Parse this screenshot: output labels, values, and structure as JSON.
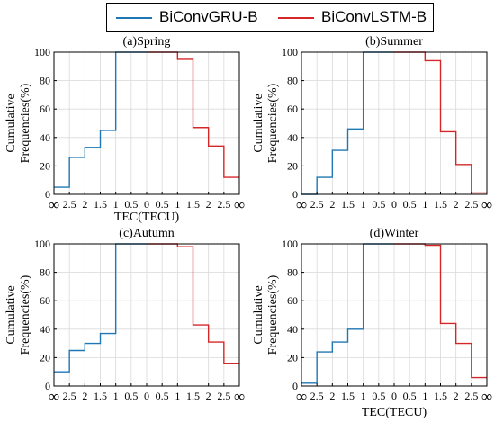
{
  "legend": {
    "gru": {
      "label": "BiConvGRU-B",
      "color": "#1f77b4"
    },
    "lstm": {
      "label": "BiConvLSTM-B",
      "color": "#d62728"
    }
  },
  "chart_data": [
    {
      "type": "line",
      "title": "(a)Spring",
      "xlabel": "TEC(TECU)",
      "ylabel": "Cumulative Frequencies(%)",
      "x_tick_labels": [
        "∞",
        "2.5",
        "2",
        "1.5",
        "1",
        "0.5",
        "0",
        "0.5",
        "1",
        "1.5",
        "2",
        "2.5",
        "∞"
      ],
      "ylim": [
        0,
        100
      ],
      "y_ticks": [
        0,
        20,
        40,
        60,
        80,
        100
      ],
      "grid": true,
      "series": [
        {
          "name": "BiConvGRU-B",
          "steps": [
            5,
            26,
            33,
            45,
            100,
            100
          ]
        },
        {
          "name": "BiConvLSTM-B",
          "steps": [
            100,
            100,
            95,
            47,
            34,
            12
          ]
        }
      ]
    },
    {
      "type": "line",
      "title": "(b)Summer",
      "xlabel": "",
      "ylabel": "Cumulative Frequencies(%)",
      "x_tick_labels": [
        "∞",
        "2.5",
        "2",
        "1.5",
        "1",
        "0.5",
        "0",
        "0.5",
        "1",
        "1.5",
        "2",
        "2.5",
        "∞"
      ],
      "ylim": [
        0,
        100
      ],
      "y_ticks": [
        0,
        20,
        40,
        60,
        80,
        100
      ],
      "grid": true,
      "series": [
        {
          "name": "BiConvGRU-B",
          "steps": [
            0,
            12,
            31,
            46,
            100,
            100
          ]
        },
        {
          "name": "BiConvLSTM-B",
          "steps": [
            100,
            100,
            94,
            44,
            21,
            1
          ]
        }
      ]
    },
    {
      "type": "line",
      "title": "(c)Autumn",
      "xlabel": "",
      "ylabel": "Cumulative Frequencies(%)",
      "x_tick_labels": [
        "∞",
        "2.5",
        "2",
        "1.5",
        "1",
        "0.5",
        "0",
        "0.5",
        "1",
        "1.5",
        "2",
        "2.5",
        "∞"
      ],
      "ylim": [
        0,
        100
      ],
      "y_ticks": [
        0,
        20,
        40,
        60,
        80,
        100
      ],
      "grid": true,
      "series": [
        {
          "name": "BiConvGRU-B",
          "steps": [
            10,
            25,
            30,
            37,
            100,
            100
          ]
        },
        {
          "name": "BiConvLSTM-B",
          "steps": [
            100,
            100,
            98,
            43,
            31,
            16
          ]
        }
      ]
    },
    {
      "type": "line",
      "title": "(d)Winter",
      "xlabel": "TEC(TECU)",
      "ylabel": "Cumulative Frequencies(%)",
      "x_tick_labels": [
        "∞",
        "2.5",
        "2",
        "1.5",
        "1",
        "0.5",
        "0",
        "0.5",
        "1",
        "1.5",
        "2",
        "2.5",
        "∞"
      ],
      "ylim": [
        0,
        100
      ],
      "y_ticks": [
        0,
        20,
        40,
        60,
        80,
        100
      ],
      "grid": true,
      "series": [
        {
          "name": "BiConvGRU-B",
          "steps": [
            2,
            24,
            31,
            40,
            100,
            100
          ]
        },
        {
          "name": "BiConvLSTM-B",
          "steps": [
            100,
            100,
            99,
            44,
            30,
            6
          ]
        }
      ]
    }
  ]
}
